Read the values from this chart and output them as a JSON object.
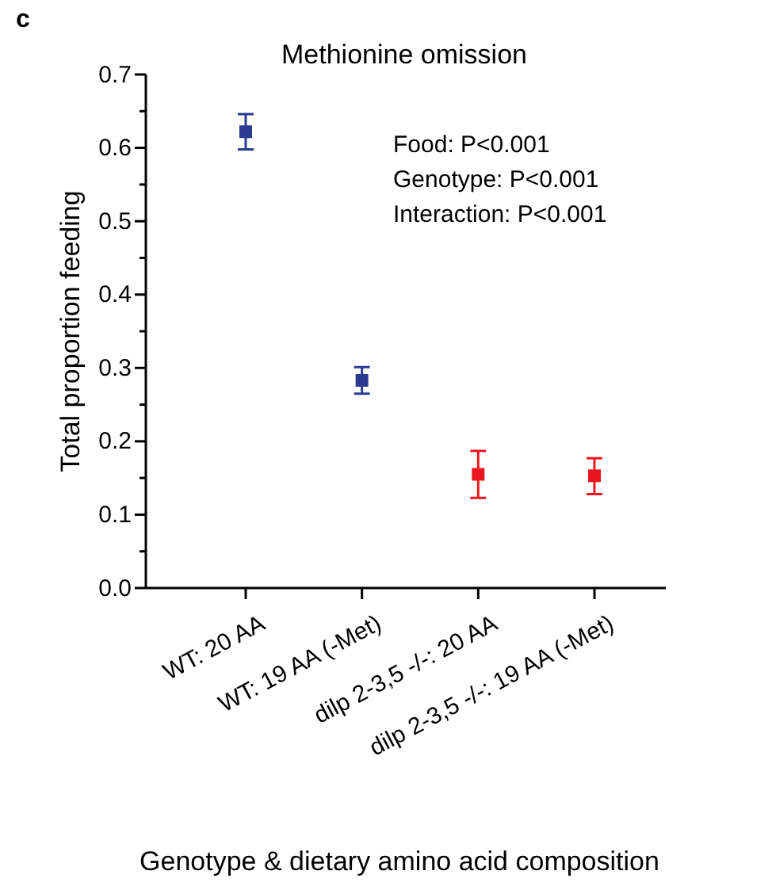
{
  "chart_data": {
    "type": "scatter",
    "title": "Methionine omission",
    "xlabel": "Genotype & dietary amino acid composition",
    "ylabel": "Total proportion feeding",
    "categories": [
      "WT: 20 AA",
      "WT: 19 AA (-Met)",
      "dilp 2-3,5 -/-: 20 AA",
      "dilp 2-3,5 -/-: 19 AA (-Met)"
    ],
    "values": [
      0.622,
      0.283,
      0.155,
      0.153
    ],
    "errors": [
      [
        0.598,
        0.646
      ],
      [
        0.265,
        0.301
      ],
      [
        0.123,
        0.187
      ],
      [
        0.128,
        0.177
      ]
    ],
    "colors": [
      "#2b3990",
      "#2b3990",
      "#e8171f",
      "#e8171f"
    ],
    "marker": "square",
    "ylim": [
      0,
      0.7
    ],
    "yticks": [
      {
        "value": 0.0,
        "label": "0.0"
      },
      {
        "value": 0.05,
        "label": null
      },
      0.1,
      {
        "value": 0.15,
        "label": null
      },
      0.2,
      {
        "value": 0.25,
        "label": null
      },
      0.3,
      {
        "value": 0.35,
        "label": null
      },
      0.4,
      {
        "value": 0.45,
        "label": null
      },
      0.5,
      {
        "value": 0.55,
        "label": null
      },
      0.6,
      {
        "value": 0.65,
        "label": null
      },
      0.7
    ],
    "grid": false,
    "annotations": [
      "c",
      "Food: P<0.001",
      "Genotype: P<0.001",
      "Interaction: P<0.001"
    ]
  }
}
